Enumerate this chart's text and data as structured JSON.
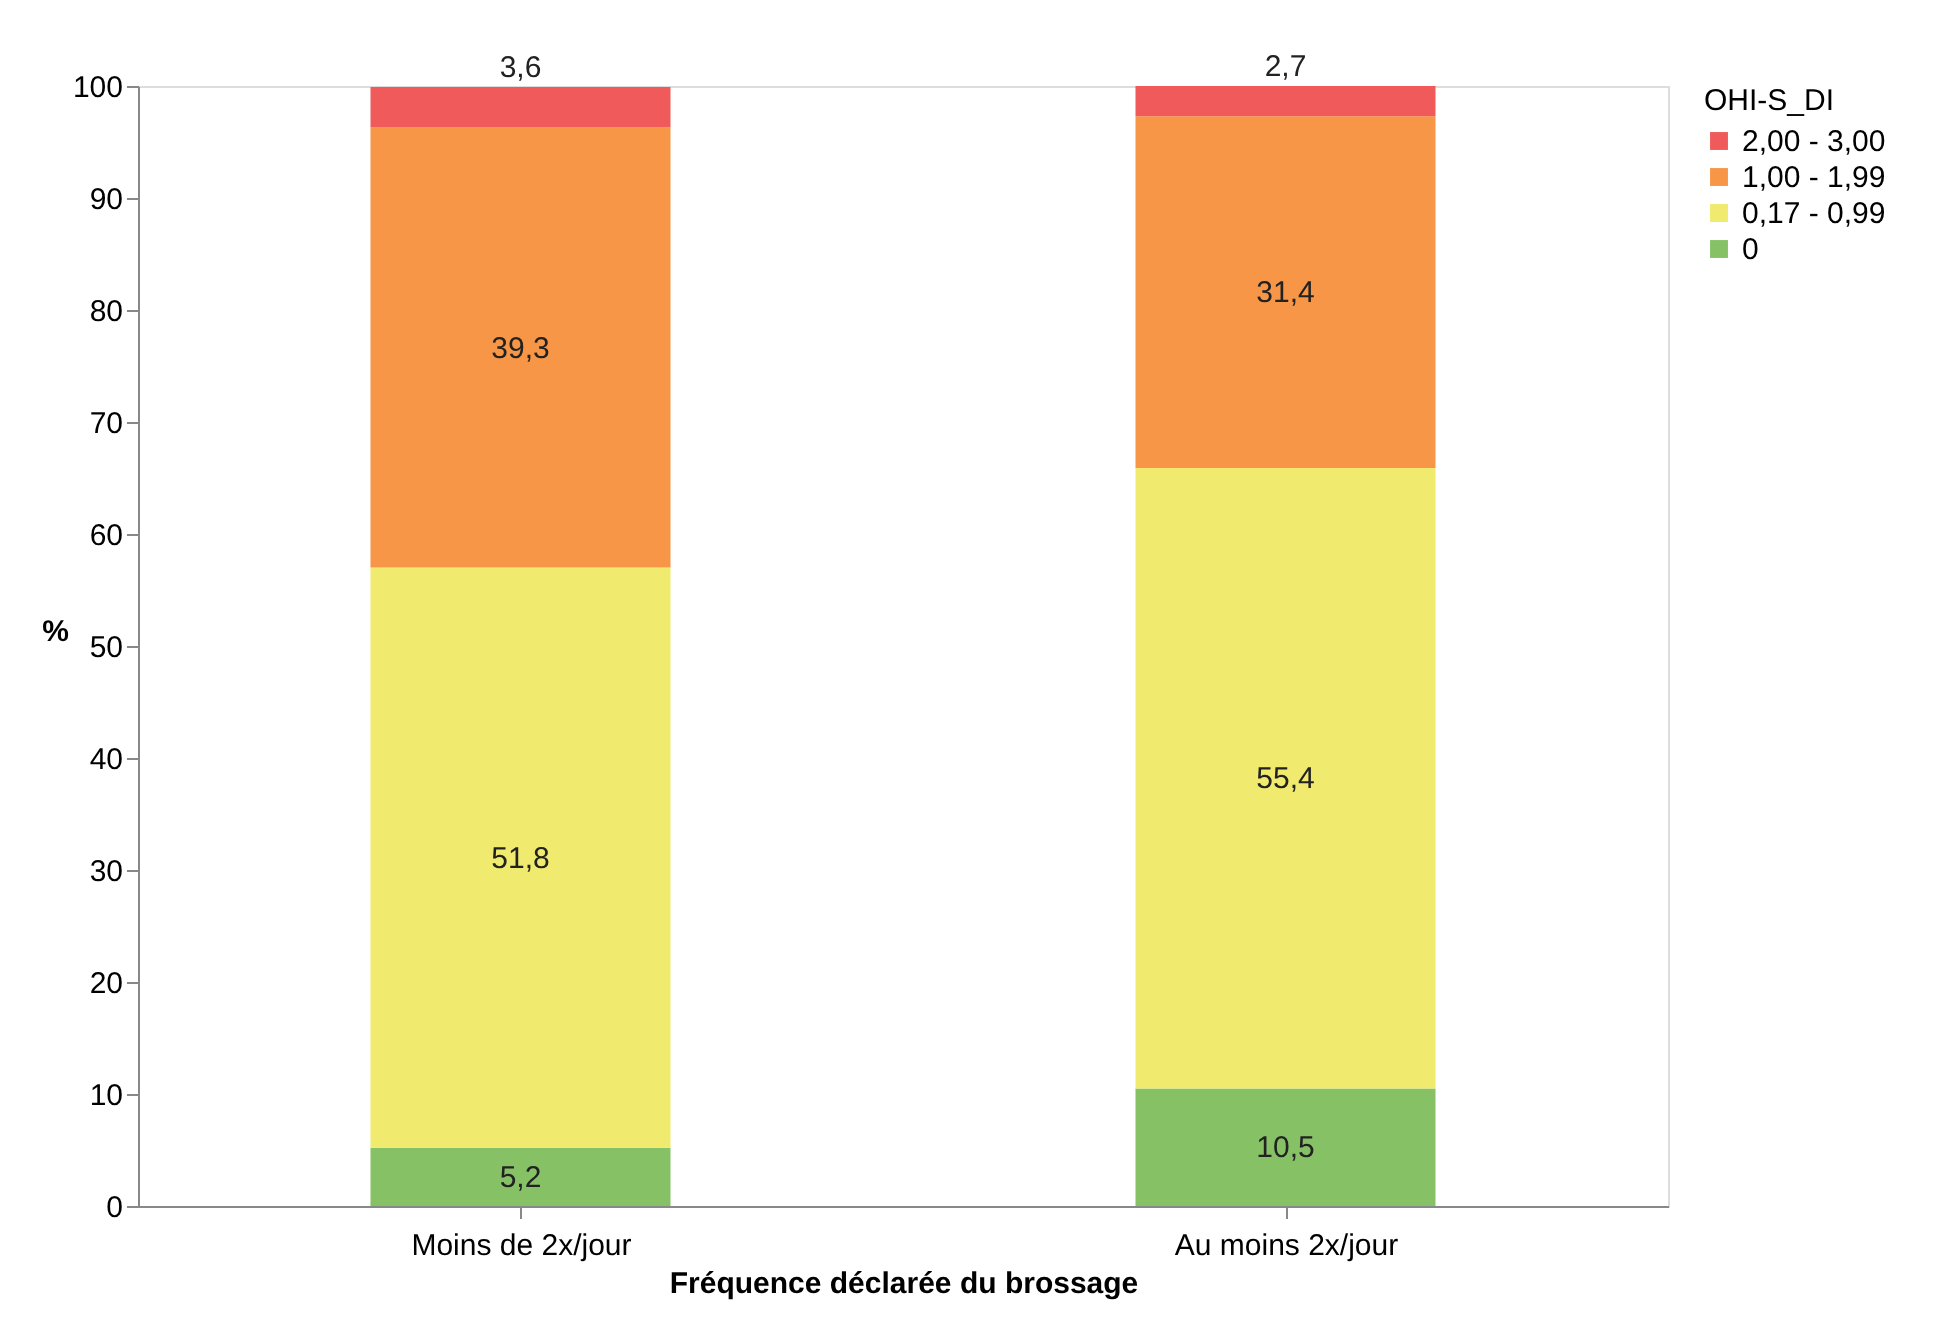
{
  "chart_data": {
    "type": "bar",
    "stacked": true,
    "xlabel": "Fréquence déclarée du brossage",
    "ylabel": "%",
    "legend_title": "OHI-S_DI",
    "legend": "right",
    "grid": false,
    "categories": [
      "Moins de 2x/jour",
      "Au moins 2x/jour"
    ],
    "ylim": [
      0,
      100
    ],
    "yticks": [
      0,
      10,
      20,
      30,
      40,
      50,
      60,
      70,
      80,
      90,
      100
    ],
    "series": [
      {
        "name": "0",
        "color": "#86c265",
        "values": [
          5.2,
          10.5
        ],
        "value_labels": [
          "5,2",
          "10,5"
        ]
      },
      {
        "name": "0,17 - 0,99",
        "color": "#f0eb6e",
        "values": [
          51.8,
          55.4
        ],
        "value_labels": [
          "51,8",
          "55,4"
        ]
      },
      {
        "name": "1,00 - 1,99",
        "color": "#f79646",
        "values": [
          39.3,
          31.4
        ],
        "value_labels": [
          "39,3",
          "31,4"
        ]
      },
      {
        "name": "2,00 - 3,00",
        "color": "#f05a5a",
        "values": [
          3.6,
          2.7
        ],
        "value_labels": [
          "3,6",
          "2,7"
        ]
      }
    ]
  }
}
